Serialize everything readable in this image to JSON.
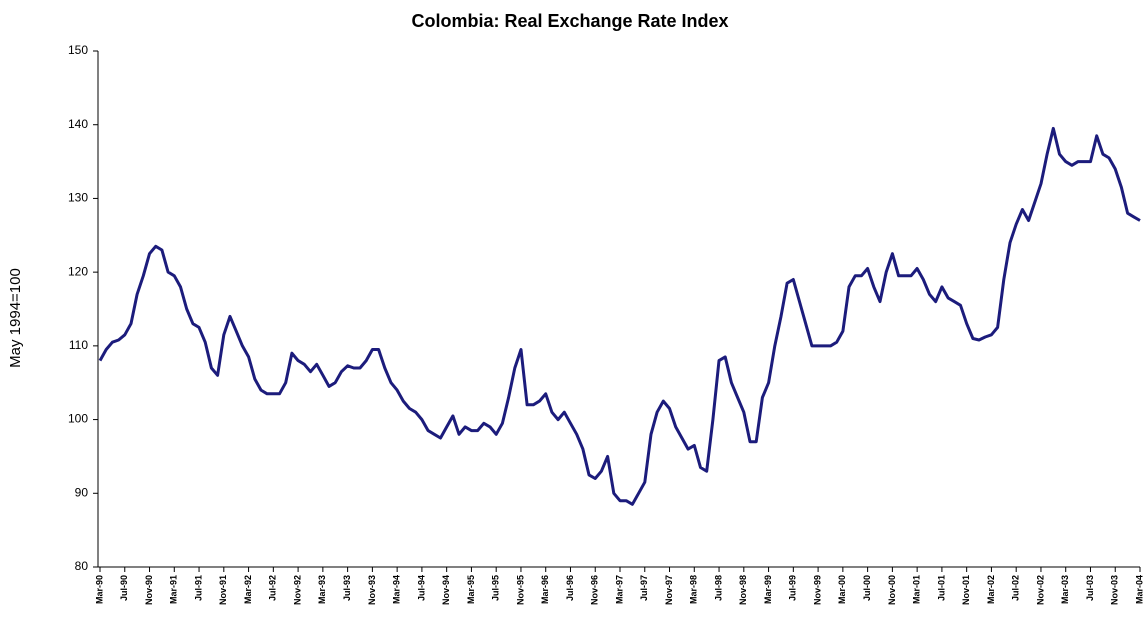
{
  "chart_data": {
    "type": "line",
    "title": "Colombia: Real Exchange Rate Index",
    "ylabel": "May 1994=100",
    "color": "#1c1c7c",
    "ylim": [
      80,
      150
    ],
    "yticks": [
      80,
      90,
      100,
      110,
      120,
      130,
      140,
      150
    ],
    "categories": [
      "Mar-90",
      null,
      null,
      null,
      "Jul-90",
      null,
      null,
      null,
      "Nov-90",
      null,
      null,
      null,
      "Mar-91",
      null,
      null,
      null,
      "Jul-91",
      null,
      null,
      null,
      "Nov-91",
      null,
      null,
      null,
      "Mar-92",
      null,
      null,
      null,
      "Jul-92",
      null,
      null,
      null,
      "Nov-92",
      null,
      null,
      null,
      "Mar-93",
      null,
      null,
      null,
      "Jul-93",
      null,
      null,
      null,
      "Nov-93",
      null,
      null,
      null,
      "Mar-94",
      null,
      null,
      null,
      "Jul-94",
      null,
      null,
      null,
      "Nov-94",
      null,
      null,
      null,
      "Mar-95",
      null,
      null,
      null,
      "Jul-95",
      null,
      null,
      null,
      "Nov-95",
      null,
      null,
      null,
      "Mar-96",
      null,
      null,
      null,
      "Jul-96",
      null,
      null,
      null,
      "Nov-96",
      null,
      null,
      null,
      "Mar-97",
      null,
      null,
      null,
      "Jul-97",
      null,
      null,
      null,
      "Nov-97",
      null,
      null,
      null,
      "Mar-98",
      null,
      null,
      null,
      "Jul-98",
      null,
      null,
      null,
      "Nov-98",
      null,
      null,
      null,
      "Mar-99",
      null,
      null,
      null,
      "Jul-99",
      null,
      null,
      null,
      "Nov-99",
      null,
      null,
      null,
      "Mar-00",
      null,
      null,
      null,
      "Jul-00",
      null,
      null,
      null,
      "Nov-00",
      null,
      null,
      null,
      "Mar-01",
      null,
      null,
      null,
      "Jul-01",
      null,
      null,
      null,
      "Nov-01",
      null,
      null,
      null,
      "Mar-02",
      null,
      null,
      null,
      "Jul-02",
      null,
      null,
      null,
      "Nov-02",
      null,
      null,
      null,
      "Mar-03",
      null,
      null,
      null,
      "Jul-03",
      null,
      null,
      null,
      "Nov-03",
      null,
      null,
      null,
      "Mar-04"
    ],
    "values": [
      108,
      109.5,
      110.5,
      110.8,
      111.5,
      113,
      117,
      119.5,
      122.5,
      123.5,
      123,
      120,
      119.5,
      118,
      115,
      113,
      112.5,
      110.5,
      107,
      106,
      111.5,
      114,
      112,
      110,
      108.5,
      105.5,
      104,
      103.5,
      103.5,
      103.5,
      105,
      109,
      108,
      107.5,
      106.5,
      107.5,
      106,
      104.5,
      105,
      106.5,
      107.3,
      107,
      107,
      108,
      109.5,
      109.5,
      107,
      105,
      104,
      102.5,
      101.5,
      101,
      100,
      98.5,
      98,
      97.5,
      99,
      100.5,
      98,
      99,
      98.5,
      98.5,
      99.5,
      99,
      98,
      99.5,
      103,
      107,
      109.5,
      102,
      102,
      102.5,
      103.5,
      101,
      100,
      101,
      99.5,
      98,
      96,
      92.5,
      92,
      93,
      95,
      90,
      89,
      89,
      88.5,
      90,
      91.5,
      98,
      101,
      102.5,
      101.5,
      99,
      97.5,
      96,
      96.5,
      93.5,
      93,
      100,
      108,
      108.5,
      105,
      103,
      101,
      97,
      97,
      103,
      105,
      110,
      114,
      118.5,
      119,
      116,
      113,
      110,
      110,
      110,
      110,
      110.5,
      112,
      118,
      119.5,
      119.5,
      120.5,
      118,
      116,
      120,
      122.5,
      119.5,
      119.5,
      119.5,
      120.5,
      119,
      117,
      116,
      118,
      116.5,
      116,
      115.5,
      113,
      111,
      110.8,
      111.2,
      111.5,
      112.5,
      119,
      124,
      126.5,
      128.5,
      127,
      129.5,
      132,
      136,
      139.5,
      136,
      135,
      134.5,
      135,
      135,
      135,
      138.5,
      136,
      135.5,
      134,
      131.5,
      128,
      127.5,
      127
    ]
  }
}
